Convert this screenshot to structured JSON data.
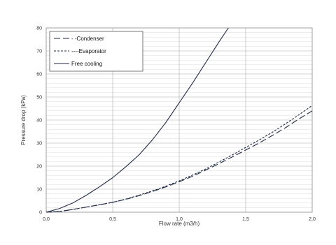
{
  "chart_data": {
    "type": "line",
    "xlabel": "Flow rate (m3/h)",
    "ylabel": "Pressure drop (kPa)",
    "xlim": [
      0,
      2
    ],
    "ylim": [
      0,
      80
    ],
    "x_ticks": [
      "0,0",
      "0,5",
      "1,0",
      "1,5",
      "2,0"
    ],
    "y_ticks": [
      "0",
      "10",
      "20",
      "30",
      "40",
      "50",
      "60",
      "70",
      "80"
    ],
    "grid": true,
    "legend_position": "top-left",
    "series": [
      {
        "name": "Condenser",
        "legend_label": "- -Condenser",
        "dash": "long-dash",
        "x": [
          0,
          0.1,
          0.2,
          0.3,
          0.4,
          0.5,
          0.6,
          0.7,
          0.8,
          0.9,
          1.0,
          1.1,
          1.2,
          1.3,
          1.4,
          1.5,
          1.6,
          1.7,
          1.8,
          1.9,
          2.0
        ],
        "y": [
          0,
          0.3,
          1.2,
          2.2,
          3.2,
          4.3,
          5.6,
          7.2,
          9.0,
          11.0,
          13.2,
          15.6,
          18.3,
          21.1,
          24.0,
          27.0,
          30.0,
          33.3,
          36.7,
          40.5,
          44.0
        ]
      },
      {
        "name": "Evaporator",
        "legend_label": "----Evaporator",
        "dash": "short-dash",
        "x": [
          0,
          0.1,
          0.2,
          0.3,
          0.4,
          0.5,
          0.6,
          0.7,
          0.8,
          0.9,
          1.0,
          1.1,
          1.2,
          1.3,
          1.4,
          1.5,
          1.6,
          1.7,
          1.8,
          1.9,
          2.0
        ],
        "y": [
          0,
          0.3,
          1.2,
          2.2,
          3.2,
          4.3,
          5.7,
          7.4,
          9.3,
          11.3,
          13.6,
          16.1,
          18.8,
          21.8,
          24.9,
          28.1,
          31.3,
          34.7,
          38.4,
          42.3,
          46.3
        ]
      },
      {
        "name": "Free cooling",
        "legend_label": "Free cooling",
        "dash": "solid",
        "x": [
          0,
          0.1,
          0.2,
          0.3,
          0.4,
          0.5,
          0.6,
          0.7,
          0.8,
          0.9,
          1.0,
          1.1,
          1.2,
          1.3,
          1.37
        ],
        "y": [
          0,
          1.6,
          4.0,
          7.3,
          11.0,
          15.0,
          19.8,
          25.0,
          31.5,
          39.0,
          47.5,
          56.0,
          65.0,
          74.0,
          80.0
        ]
      }
    ]
  }
}
